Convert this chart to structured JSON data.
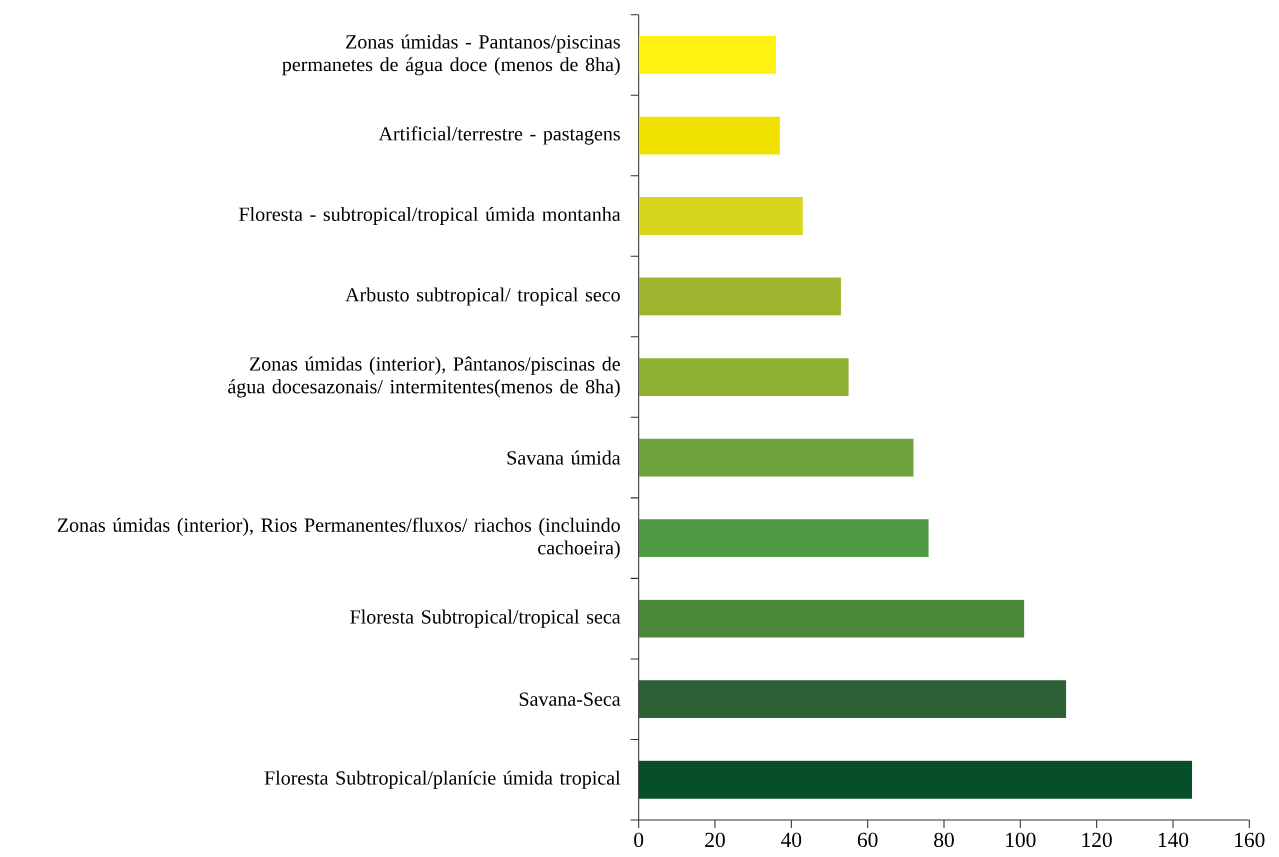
{
  "chart_data": {
    "type": "bar",
    "orientation": "horizontal",
    "categories": [
      "Zonas úmidas - Pantanos/piscinas permanetes de água doce (menos de 8ha)",
      "Artificial/terrestre - pastagens",
      "Floresta - subtropical/tropical úmida montanha",
      "Arbusto subtropical/ tropical seco",
      "Zonas úmidas (interior), Pântanos/piscinas  de água docesazonais/ intermitentes(menos de 8ha)",
      "Savana úmida",
      "Zonas úmidas (interior), Rios Permanentes/fluxos/ riachos (incluindo cachoeira)",
      "Floresta Subtropical/tropical seca",
      "Savana-Seca",
      "Floresta Subtropical/planície úmida tropical"
    ],
    "values": [
      36,
      37,
      43,
      53,
      55,
      72,
      76,
      101,
      112,
      145
    ],
    "colors": [
      "#fff212",
      "#f0e200",
      "#d8d61c",
      "#9fb530",
      "#8db033",
      "#6fa33d",
      "#4e9b44",
      "#4a8739",
      "#2d6035",
      "#064f28"
    ],
    "xlim": [
      0,
      160
    ],
    "xticks": [
      0,
      20,
      40,
      60,
      80,
      100,
      120,
      140,
      160
    ]
  }
}
